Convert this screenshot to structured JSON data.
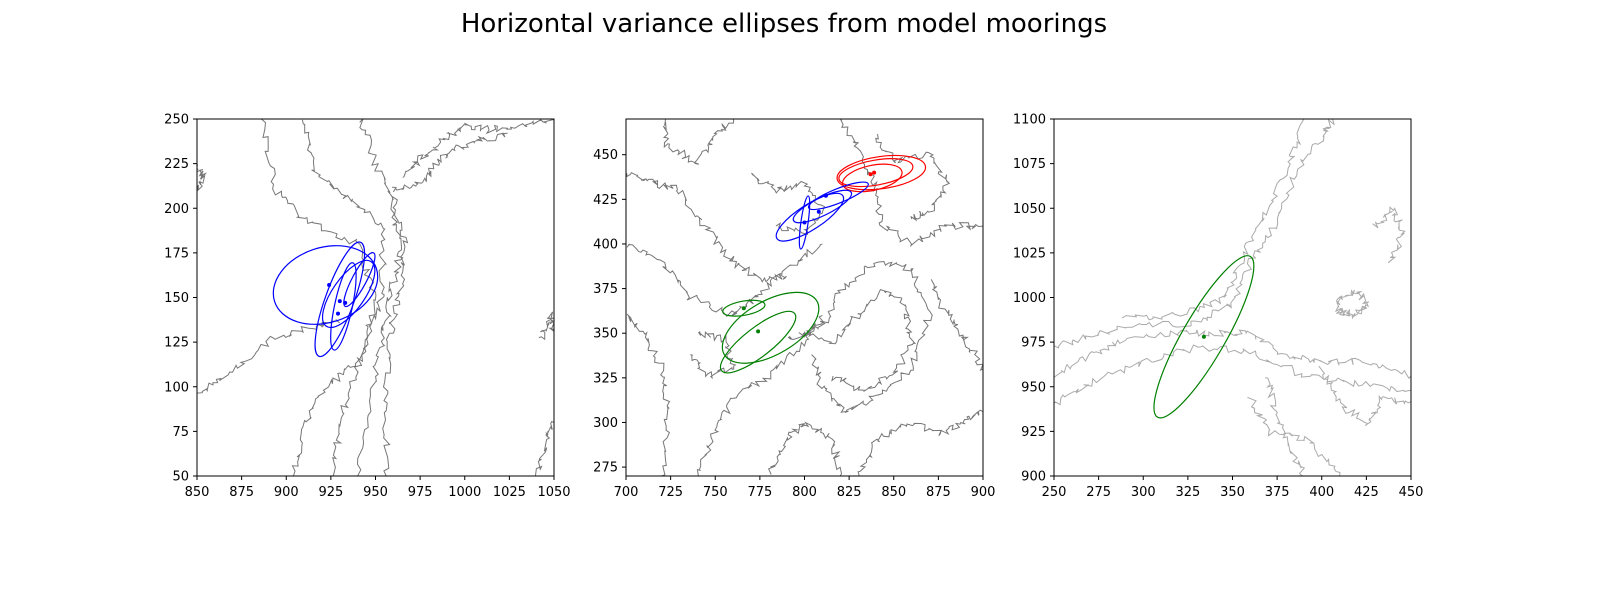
{
  "figure": {
    "title": "Horizontal variance ellipses from model moorings"
  },
  "chart_data": [
    {
      "type": "scatter",
      "title": "",
      "xlabel": "",
      "ylabel": "",
      "xlim": [
        850,
        1050
      ],
      "ylim": [
        50,
        250
      ],
      "xticks": [
        850,
        875,
        900,
        925,
        950,
        975,
        1000,
        1025,
        1050
      ],
      "yticks": [
        50,
        75,
        100,
        125,
        150,
        175,
        200,
        225,
        250
      ],
      "grid": false,
      "background": "depth contours (grey)",
      "contour_color": "#777777",
      "moorings": [
        {
          "x": 924,
          "y": 157,
          "color": "#0000ff"
        },
        {
          "x": 930,
          "y": 148,
          "color": "#0000ff"
        },
        {
          "x": 933,
          "y": 147,
          "color": "#0000ff"
        },
        {
          "x": 929,
          "y": 141,
          "color": "#0000ff"
        }
      ],
      "ellipses": [
        {
          "cx": 922,
          "cy": 157,
          "a": 30,
          "b": 21,
          "angle_deg": 18,
          "color": "#0000ff"
        },
        {
          "cx": 930,
          "cy": 149,
          "a": 34,
          "b": 8,
          "angle_deg": 70,
          "color": "#0000ff"
        },
        {
          "cx": 932,
          "cy": 145,
          "a": 25,
          "b": 5,
          "angle_deg": 78,
          "color": "#0000ff"
        },
        {
          "cx": 935,
          "cy": 152,
          "a": 22,
          "b": 9,
          "angle_deg": 55,
          "color": "#0000ff"
        },
        {
          "cx": 941,
          "cy": 160,
          "a": 17,
          "b": 4,
          "angle_deg": 62,
          "color": "#0000ff"
        }
      ]
    },
    {
      "type": "scatter",
      "title": "",
      "xlabel": "",
      "ylabel": "",
      "xlim": [
        700,
        900
      ],
      "ylim": [
        270,
        470
      ],
      "xticks": [
        700,
        725,
        750,
        775,
        800,
        825,
        850,
        875,
        900
      ],
      "yticks": [
        275,
        300,
        325,
        350,
        375,
        400,
        425,
        450
      ],
      "grid": false,
      "background": "depth contours (grey)",
      "contour_color": "#777777",
      "moorings": [
        {
          "x": 837,
          "y": 439,
          "color": "#ff0000"
        },
        {
          "x": 839,
          "y": 440,
          "color": "#ff0000"
        },
        {
          "x": 812,
          "y": 427,
          "color": "#0000ff"
        },
        {
          "x": 808,
          "y": 418,
          "color": "#0000ff"
        },
        {
          "x": 800,
          "y": 412,
          "color": "#0000ff"
        },
        {
          "x": 766,
          "y": 364,
          "color": "#008000"
        },
        {
          "x": 774,
          "y": 351,
          "color": "#008000"
        }
      ],
      "ellipses": [
        {
          "cx": 840,
          "cy": 440,
          "a": 21,
          "b": 7,
          "angle_deg": 10,
          "color": "#ff0000"
        },
        {
          "cx": 843,
          "cy": 440,
          "a": 25,
          "b": 9,
          "angle_deg": 8,
          "color": "#ff0000"
        },
        {
          "cx": 838,
          "cy": 437,
          "a": 17,
          "b": 7,
          "angle_deg": 12,
          "color": "#ff0000"
        },
        {
          "cx": 803,
          "cy": 415,
          "a": 22,
          "b": 7,
          "angle_deg": 33,
          "color": "#0000ff"
        },
        {
          "cx": 810,
          "cy": 421,
          "a": 18,
          "b": 5,
          "angle_deg": 26,
          "color": "#0000ff"
        },
        {
          "cx": 819,
          "cy": 427,
          "a": 18,
          "b": 4,
          "angle_deg": 22,
          "color": "#0000ff"
        },
        {
          "cx": 800,
          "cy": 412,
          "a": 15,
          "b": 2,
          "angle_deg": 82,
          "color": "#0000ff"
        },
        {
          "cx": 781,
          "cy": 353,
          "a": 30,
          "b": 15,
          "angle_deg": 30,
          "color": "#008000"
        },
        {
          "cx": 774,
          "cy": 345,
          "a": 26,
          "b": 8,
          "angle_deg": 38,
          "color": "#008000"
        },
        {
          "cx": 766,
          "cy": 364,
          "a": 12,
          "b": 4,
          "angle_deg": 10,
          "color": "#008000"
        }
      ]
    },
    {
      "type": "scatter",
      "title": "",
      "xlabel": "",
      "ylabel": "",
      "xlim": [
        250,
        450
      ],
      "ylim": [
        900,
        1100
      ],
      "xticks": [
        250,
        275,
        300,
        325,
        350,
        375,
        400,
        425,
        450
      ],
      "yticks": [
        900,
        925,
        950,
        975,
        1000,
        1025,
        1050,
        1075,
        1100
      ],
      "grid": false,
      "background": "depth contours (light grey)",
      "contour_color": "#aaaaaa",
      "moorings": [
        {
          "x": 334,
          "y": 978,
          "color": "#008000"
        }
      ],
      "ellipses": [
        {
          "cx": 334,
          "cy": 978,
          "a": 52,
          "b": 12,
          "angle_deg": 60,
          "color": "#008000"
        }
      ]
    }
  ]
}
